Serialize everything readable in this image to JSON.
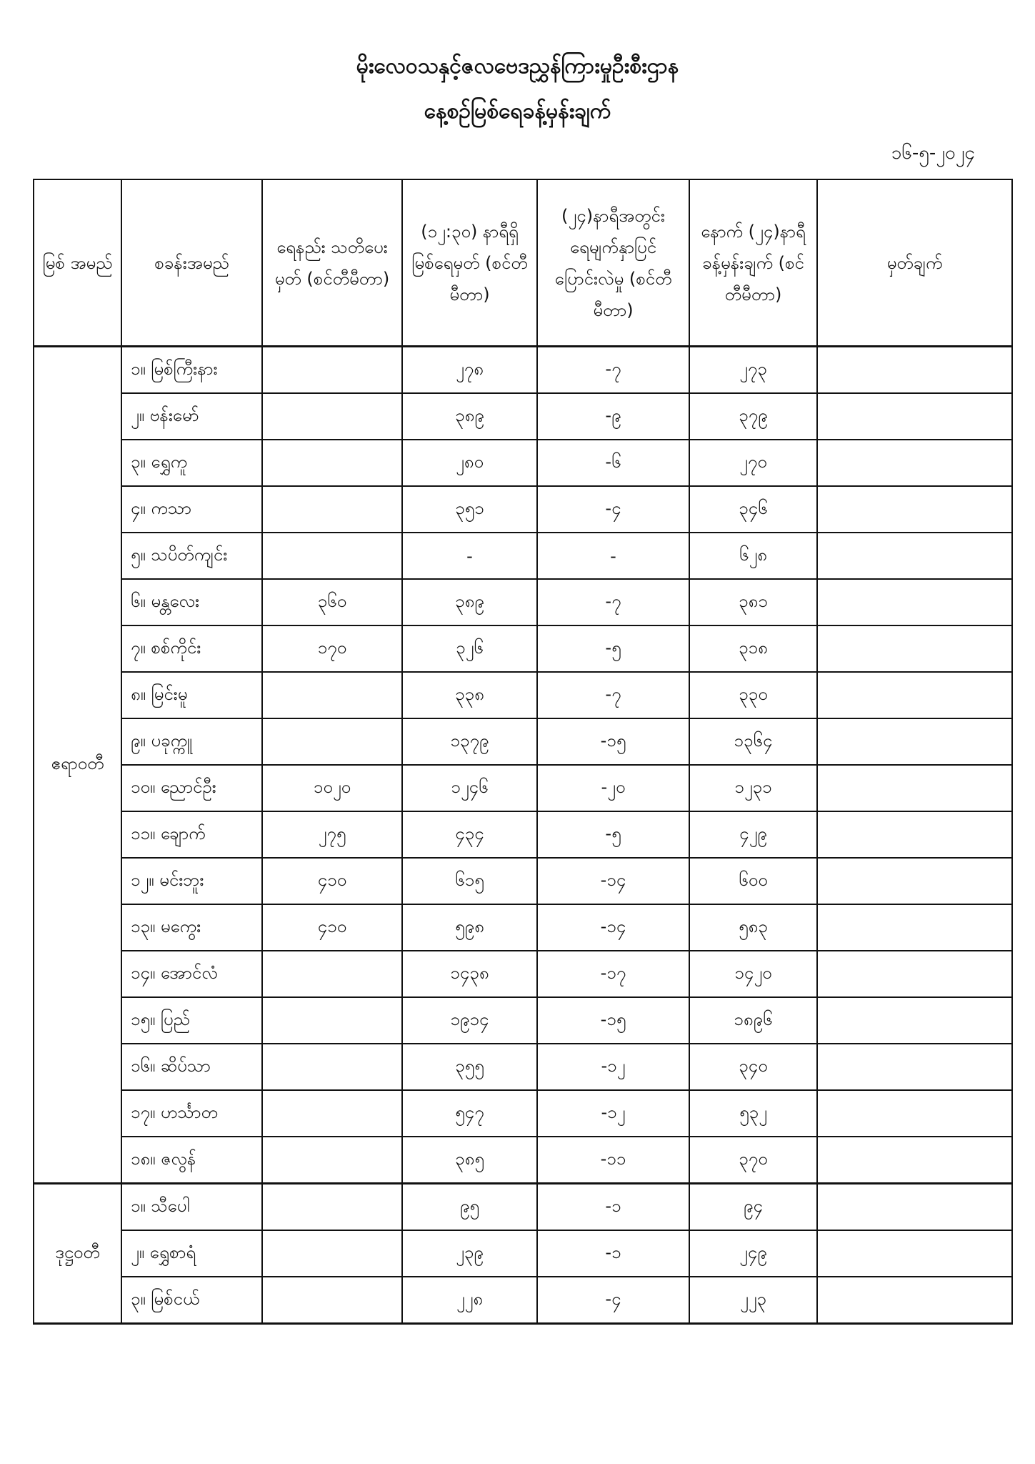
{
  "header": {
    "title": "မိုးလေဝသနှင့်ဇလဗေဒညွှန်ကြားမှုဦးစီးဌာန",
    "subtitle": "နေ့စဉ်မြစ်ရေခန့်မှန်းချက်",
    "date": "၁၆-၅-၂၀၂၄"
  },
  "table": {
    "columns": [
      "မြစ် အမည်",
      "စခန်းအမည်",
      "ရေနည်း သတိပေးမှတ် (စင်တီမီတာ)",
      "(၁၂:၃၀) နာရီရှိ မြစ်ရေမှတ် (စင်တီမီတာ)",
      "(၂၄)နာရီအတွင်း ရေမျက်နှာပြင် ပြောင်းလဲမှု (စင်တီမီတာ)",
      "နောက် (၂၄)နာရီ ခန့်မှန်းချက် (စင်တီမီတာ)",
      "မှတ်ချက်"
    ],
    "groups": [
      {
        "river": "ဧရာဝတီ",
        "rows": [
          {
            "station": "၁။ မြစ်ကြီးနား",
            "warning": "",
            "level": "၂၇၈",
            "change": "-၇",
            "forecast": "၂၇၃",
            "remark": ""
          },
          {
            "station": "၂။ ဗန်းမော်",
            "warning": "",
            "level": "၃၈၉",
            "change": "-၉",
            "forecast": "၃၇၉",
            "remark": ""
          },
          {
            "station": "၃။ ရွှေကူ",
            "warning": "",
            "level": "၂၈၀",
            "change": "-၆",
            "forecast": "၂၇၀",
            "remark": ""
          },
          {
            "station": "၄။ ကသာ",
            "warning": "",
            "level": "၃၅၁",
            "change": "-၄",
            "forecast": "၃၄၆",
            "remark": ""
          },
          {
            "station": "၅။ သပိတ်ကျင်း",
            "warning": "",
            "level": "-",
            "change": "-",
            "forecast": "၆၂၈",
            "remark": ""
          },
          {
            "station": "၆။ မန္တလေး",
            "warning": "၃၆၀",
            "level": "၃၈၉",
            "change": "-၇",
            "forecast": "၃၈၁",
            "remark": ""
          },
          {
            "station": "၇။ စစ်ကိုင်း",
            "warning": "၁၇၀",
            "level": "၃၂၆",
            "change": "-၅",
            "forecast": "၃၁၈",
            "remark": ""
          },
          {
            "station": "၈။ မြင်းမူ",
            "warning": "",
            "level": "၃၃၈",
            "change": "-၇",
            "forecast": "၃၃၀",
            "remark": ""
          },
          {
            "station": "၉။ ပခုက္ကူ",
            "warning": "",
            "level": "၁၃၇၉",
            "change": "-၁၅",
            "forecast": "၁၃၆၄",
            "remark": ""
          },
          {
            "station": "၁၀။ ညောင်ဦး",
            "warning": "၁၀၂၀",
            "level": "၁၂၄၆",
            "change": "-၂၀",
            "forecast": "၁၂၃၁",
            "remark": ""
          },
          {
            "station": "၁၁။ ချောက်",
            "warning": "၂၇၅",
            "level": "၄၃၄",
            "change": "-၅",
            "forecast": "၄၂၉",
            "remark": ""
          },
          {
            "station": "၁၂။ မင်းဘူး",
            "warning": "၄၁၀",
            "level": "၆၁၅",
            "change": "-၁၄",
            "forecast": "၆၀၀",
            "remark": ""
          },
          {
            "station": "၁၃။ မကွေး",
            "warning": "၄၁၀",
            "level": "၅၉၈",
            "change": "-၁၄",
            "forecast": "၅၈၃",
            "remark": ""
          },
          {
            "station": "၁၄။ အောင်လံ",
            "warning": "",
            "level": "၁၄၃၈",
            "change": "-၁၇",
            "forecast": "၁၄၂၀",
            "remark": ""
          },
          {
            "station": "၁၅။ ပြည်",
            "warning": "",
            "level": "၁၉၁၄",
            "change": "-၁၅",
            "forecast": "၁၈၉၆",
            "remark": ""
          },
          {
            "station": "၁၆။ ဆိပ်သာ",
            "warning": "",
            "level": "၃၅၅",
            "change": "-၁၂",
            "forecast": "၃၄၀",
            "remark": ""
          },
          {
            "station": "၁၇။ ဟင်္သာတ",
            "warning": "",
            "level": "၅၄၇",
            "change": "-၁၂",
            "forecast": "၅၃၂",
            "remark": ""
          },
          {
            "station": "၁၈။ ဇလွန်",
            "warning": "",
            "level": "၃၈၅",
            "change": "-၁၁",
            "forecast": "၃၇၀",
            "remark": ""
          }
        ]
      },
      {
        "river": "ဒုဋ္ဌဝတီ",
        "rows": [
          {
            "station": "၁။ သီပေါ",
            "warning": "",
            "level": "၉၅",
            "change": "-၁",
            "forecast": "၉၄",
            "remark": ""
          },
          {
            "station": "၂။ ရွှေစာရံ",
            "warning": "",
            "level": "၂၃၉",
            "change": "-၁",
            "forecast": "၂၄၉",
            "remark": ""
          },
          {
            "station": "၃။ မြစ်ငယ်",
            "warning": "",
            "level": "၂၂၈",
            "change": "-၄",
            "forecast": "၂၂၃",
            "remark": ""
          }
        ]
      }
    ]
  }
}
